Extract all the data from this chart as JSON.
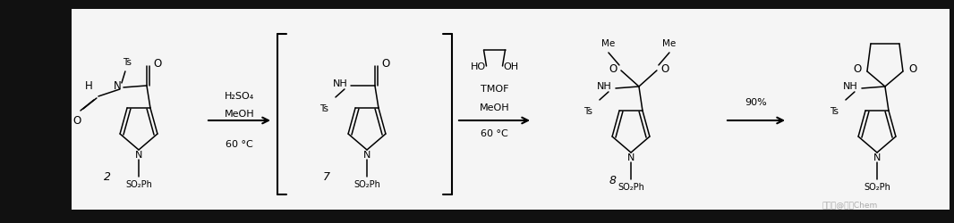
{
  "bg_dark": "#111111",
  "bg_white": "#f5f5f5",
  "lc": "#000000",
  "tc": "#000000",
  "fig_w": 10.66,
  "fig_h": 2.5,
  "dpi": 100,
  "arrow1_l1": "H₂SO₄",
  "arrow1_l2": "MeOH",
  "arrow1_l3": "60 °C",
  "arrow2_l1": "TMOF",
  "arrow2_l2": "MeOH",
  "arrow2_l3": "60 °C",
  "arrow3_l1": "90%",
  "watermark": "搜狐号@化解Chem",
  "c2": "2",
  "c7": "7",
  "c8": "8"
}
